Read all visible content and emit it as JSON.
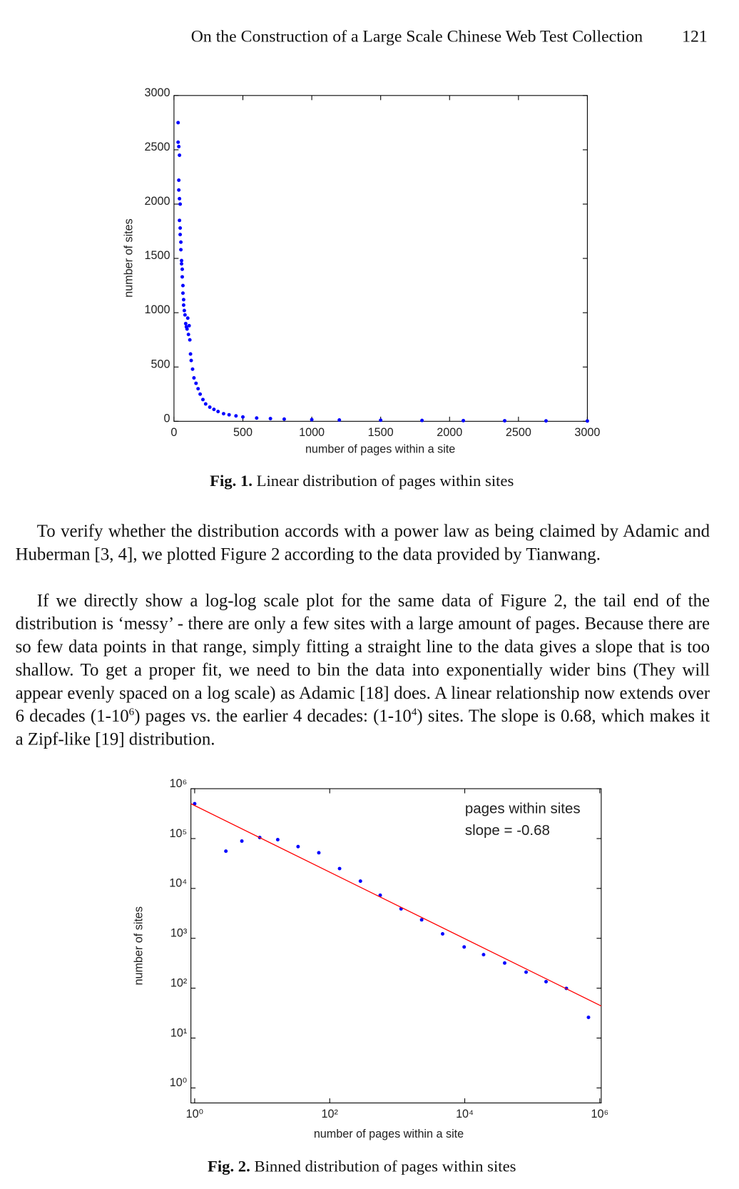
{
  "header": {
    "title": "On the Construction of a Large Scale Chinese Web Test Collection",
    "page_number": "121"
  },
  "chart_data": [
    {
      "type": "scatter",
      "xlabel": "number of pages within a site",
      "ylabel": "number of sites",
      "color": "#0000ff",
      "x": [
        30,
        30,
        35,
        40,
        35,
        35,
        40,
        45,
        40,
        45,
        45,
        50,
        50,
        55,
        55,
        60,
        60,
        65,
        65,
        70,
        70,
        75,
        80,
        85,
        90,
        95,
        100,
        105,
        110,
        115,
        120,
        125,
        135,
        145,
        160,
        175,
        190,
        210,
        230,
        260,
        290,
        320,
        360,
        400,
        450,
        500,
        600,
        700,
        800,
        1000,
        1200,
        1500,
        1800,
        2100,
        2400,
        2700,
        3000
      ],
      "values": [
        2750,
        2570,
        2530,
        2450,
        2220,
        2130,
        2050,
        2000,
        1850,
        1780,
        1720,
        1650,
        1580,
        1480,
        1450,
        1400,
        1330,
        1250,
        1180,
        1120,
        1070,
        1020,
        980,
        900,
        870,
        850,
        950,
        800,
        880,
        750,
        620,
        560,
        480,
        400,
        350,
        300,
        250,
        200,
        160,
        130,
        110,
        90,
        70,
        60,
        50,
        40,
        30,
        25,
        20,
        15,
        12,
        10,
        8,
        6,
        5,
        4,
        3
      ],
      "xlim": [
        0,
        3000
      ],
      "ylim": [
        0,
        3000
      ],
      "xticks": [
        0,
        500,
        1000,
        1500,
        2000,
        2500,
        3000
      ],
      "yticks": [
        0,
        500,
        1000,
        1500,
        2000,
        2500,
        3000
      ]
    },
    {
      "type": "scatter",
      "xlabel": "number of pages within a site",
      "ylabel": "number of sites",
      "xscale": "log",
      "yscale": "log",
      "annotations": [
        "pages within sites",
        "slope = -0.68"
      ],
      "series": [
        {
          "color": "#0000ff",
          "marker": "dot",
          "x": [
            1,
            2.9,
            5,
            9.2,
            17,
            34,
            69,
            140,
            285,
            560,
            1140,
            2300,
            4700,
            9800,
            19000,
            39000,
            81000,
            160000,
            320000,
            680000
          ],
          "values": [
            500000,
            56000,
            89000,
            105000,
            95000,
            69000,
            52000,
            25000,
            14000,
            7300,
            3900,
            2350,
            1230,
            670,
            470,
            320,
            210,
            135,
            99,
            26
          ]
        },
        {
          "color": "#ff0000",
          "marker": "line",
          "x": [
            0.88,
            1050000
          ],
          "values": [
            500000,
            44
          ]
        }
      ],
      "xlim": [
        0.88,
        1050000
      ],
      "ylim": [
        0.5,
        1000000
      ],
      "xticks": [
        {
          "value": 1,
          "label": "10⁰"
        },
        {
          "value": 100,
          "label": "10²"
        },
        {
          "value": 10000,
          "label": "10⁴"
        },
        {
          "value": 1000000,
          "label": "10⁶"
        }
      ],
      "yticks": [
        {
          "value": 1,
          "label": "10⁰"
        },
        {
          "value": 10,
          "label": "10¹"
        },
        {
          "value": 100,
          "label": "10²"
        },
        {
          "value": 1000,
          "label": "10³"
        },
        {
          "value": 10000,
          "label": "10⁴"
        },
        {
          "value": 100000,
          "label": "10⁵"
        },
        {
          "value": 1000000,
          "label": "10⁶"
        }
      ]
    }
  ],
  "captions": [
    {
      "label": "Fig. 1.",
      "text": "Linear distribution of pages within sites"
    },
    {
      "label": "Fig. 2.",
      "text": "Binned distribution of pages within sites"
    }
  ],
  "paragraphs": [
    [
      {
        "text": "To verify whether the distribution accords with a power law as being claimed by Adamic and Huberman [3, 4], we plotted Figure 2 according to the data provided by Tianwang."
      }
    ],
    [
      {
        "text": "If we directly show a log-log scale plot for the same data of Figure 2, the tail end of the distribution is ‘messy’ - there are only a few sites with a large amount of pages. Because there are so few data points in that range, simply fitting a straight line to the data gives a slope that is too shallow. To get a proper fit, we need to bin the data into exponentially wider bins (They will appear evenly spaced on a log scale) as Adamic [18] does. A linear relationship now extends over 6 decades (1-10"
      },
      {
        "sup": "6"
      },
      {
        "text": ") pages vs. the earlier 4 decades: (1-10"
      },
      {
        "sup": "4"
      },
      {
        "text": ") sites. The slope is 0.68, which makes it a Zipf-like [19] distribution."
      }
    ]
  ]
}
